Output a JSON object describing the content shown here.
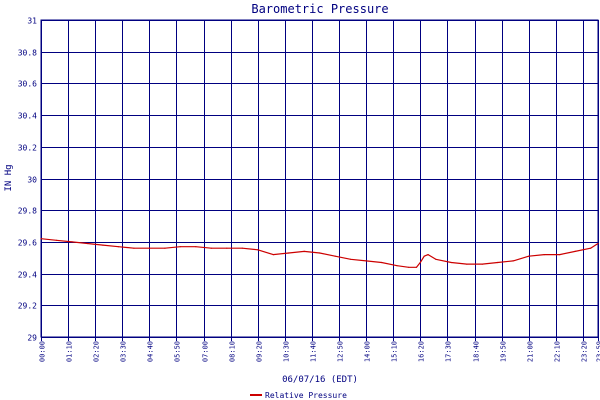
{
  "chart_data": {
    "type": "line",
    "title": "Barometric Pressure",
    "xlabel": "06/07/16 (EDT)",
    "ylabel": "IN Hg",
    "ylim": [
      29,
      31
    ],
    "yticks": [
      "29",
      "29.2",
      "29.4",
      "29.6",
      "29.8",
      "30",
      "30.2",
      "30.4",
      "30.6",
      "30.8",
      "31"
    ],
    "x_categories": [
      "00:00",
      "01:10",
      "02:20",
      "03:30",
      "04:40",
      "05:50",
      "07:00",
      "08:10",
      "09:20",
      "10:30",
      "11:40",
      "12:50",
      "14:00",
      "15:10",
      "16:20",
      "17:30",
      "18:40",
      "19:50",
      "21:00",
      "22:10",
      "23:20",
      "23:59"
    ],
    "grid": true,
    "legend_position": "bottom-center",
    "colors": {
      "axis": "#000080",
      "series": "#cc0000"
    },
    "series": [
      {
        "name": "Relative Pressure",
        "x_minutes": [
          0,
          40,
          80,
          120,
          160,
          200,
          240,
          280,
          320,
          360,
          400,
          440,
          480,
          520,
          560,
          600,
          640,
          680,
          720,
          760,
          800,
          840,
          880,
          920,
          950,
          970,
          980,
          990,
          1000,
          1020,
          1060,
          1100,
          1140,
          1180,
          1220,
          1260,
          1300,
          1340,
          1380,
          1420,
          1439
        ],
        "values": [
          29.62,
          29.61,
          29.6,
          29.59,
          29.58,
          29.57,
          29.56,
          29.56,
          29.56,
          29.57,
          29.57,
          29.56,
          29.56,
          29.56,
          29.55,
          29.52,
          29.53,
          29.54,
          29.53,
          29.51,
          29.49,
          29.48,
          29.47,
          29.45,
          29.44,
          29.44,
          29.47,
          29.51,
          29.52,
          29.49,
          29.47,
          29.46,
          29.46,
          29.47,
          29.48,
          29.51,
          29.52,
          29.52,
          29.54,
          29.56,
          29.59
        ]
      }
    ]
  }
}
